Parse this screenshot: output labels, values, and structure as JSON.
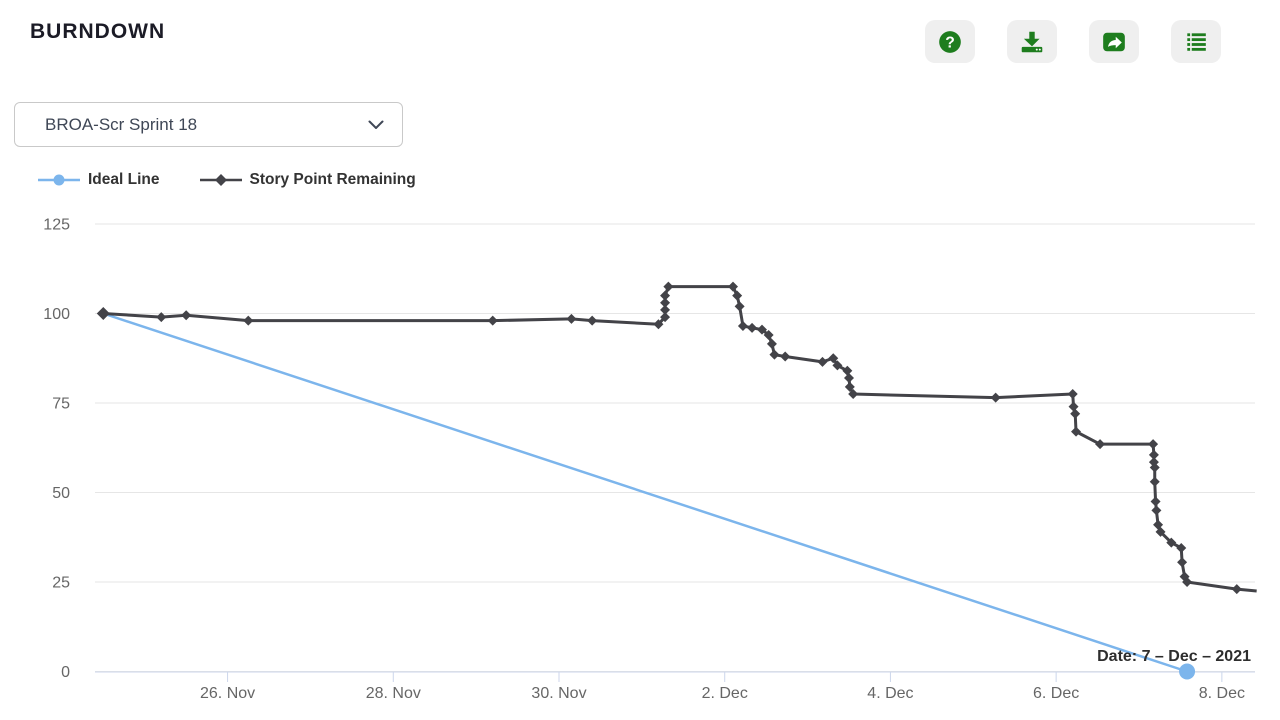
{
  "header": {
    "title": "BURNDOWN"
  },
  "toolbar": {
    "buttons": [
      {
        "name": "help",
        "icon": "question-circle-icon"
      },
      {
        "name": "download",
        "icon": "download-icon"
      },
      {
        "name": "share",
        "icon": "share-arrow-icon"
      },
      {
        "name": "list",
        "icon": "list-icon"
      }
    ],
    "icon_color": "#1e7d1e",
    "button_bg": "#efefef"
  },
  "sprint_select": {
    "value": "BROA-Scr Sprint 18"
  },
  "legend": [
    {
      "label": "Ideal Line",
      "color": "#7cb5ec",
      "marker": "circle"
    },
    {
      "label": "Story Point Remaining",
      "color": "#434348",
      "marker": "diamond"
    }
  ],
  "tooltip": {
    "text": "Date: 7 – Dec – 2021"
  },
  "chart_data": {
    "type": "line",
    "title": "",
    "xlabel": "",
    "ylabel": "",
    "x_unit": "days since 26 Nov 2021",
    "x_range": [
      -1.6,
      12.4
    ],
    "ylim": [
      0,
      125
    ],
    "grid": "horizontal",
    "legend_position": "top-left",
    "y_ticks": [
      0,
      25,
      50,
      75,
      100,
      125
    ],
    "x_ticks": [
      {
        "day": 0,
        "label": "26. Nov"
      },
      {
        "day": 2,
        "label": "28. Nov"
      },
      {
        "day": 4,
        "label": "30. Nov"
      },
      {
        "day": 6,
        "label": "2. Dec"
      },
      {
        "day": 8,
        "label": "4. Dec"
      },
      {
        "day": 10,
        "label": "6. Dec"
      },
      {
        "day": 12,
        "label": "8. Dec"
      }
    ],
    "series": [
      {
        "name": "Ideal Line",
        "color": "#7cb5ec",
        "marker": "circle",
        "line_width": 2.5,
        "points": [
          [
            -1.5,
            100
          ],
          [
            11.58,
            0
          ]
        ]
      },
      {
        "name": "Story Point Remaining",
        "color": "#434348",
        "marker": "diamond",
        "line_width": 3,
        "points": [
          [
            -1.5,
            100
          ],
          [
            -0.8,
            99
          ],
          [
            -0.5,
            99.5
          ],
          [
            0.25,
            98
          ],
          [
            3.2,
            98
          ],
          [
            4.15,
            98.5
          ],
          [
            4.4,
            98
          ],
          [
            5.2,
            97
          ],
          [
            5.28,
            99
          ],
          [
            5.28,
            101
          ],
          [
            5.28,
            103
          ],
          [
            5.28,
            105
          ],
          [
            5.32,
            107.5
          ],
          [
            6.1,
            107.5
          ],
          [
            6.15,
            105
          ],
          [
            6.18,
            102
          ],
          [
            6.22,
            96.5
          ],
          [
            6.33,
            96
          ],
          [
            6.45,
            95.5
          ],
          [
            6.53,
            94
          ],
          [
            6.57,
            91.5
          ],
          [
            6.6,
            88.5
          ],
          [
            6.73,
            88
          ],
          [
            7.18,
            86.5
          ],
          [
            7.31,
            87.5
          ],
          [
            7.36,
            85.5
          ],
          [
            7.48,
            84
          ],
          [
            7.5,
            82
          ],
          [
            7.51,
            79.5
          ],
          [
            7.55,
            77.5
          ],
          [
            9.27,
            76.5
          ],
          [
            10.2,
            77.5
          ],
          [
            10.21,
            74
          ],
          [
            10.23,
            72
          ],
          [
            10.24,
            67
          ],
          [
            10.53,
            63.5
          ],
          [
            11.17,
            63.5
          ],
          [
            11.18,
            60.5
          ],
          [
            11.18,
            58.5
          ],
          [
            11.19,
            57
          ],
          [
            11.19,
            53
          ],
          [
            11.2,
            47.5
          ],
          [
            11.21,
            45
          ],
          [
            11.23,
            41
          ],
          [
            11.26,
            39
          ],
          [
            11.39,
            36
          ],
          [
            11.51,
            34.5
          ],
          [
            11.52,
            30.5
          ],
          [
            11.55,
            26.5
          ],
          [
            11.58,
            25
          ],
          [
            12.18,
            23
          ]
        ],
        "tail": [
          12.42,
          22.5
        ]
      }
    ],
    "hover_point": {
      "series": "Ideal Line",
      "x": 11.58,
      "y": 0,
      "tooltip": "Date: 7 – Dec – 2021"
    },
    "colors": {
      "grid": "#e6e6e6",
      "axis": "#ccd6eb",
      "tick_label": "#666666",
      "tooltip_text": "#2d2d2d"
    }
  }
}
